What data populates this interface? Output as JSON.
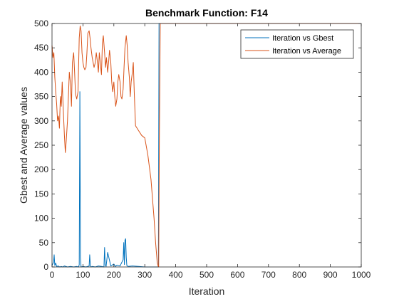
{
  "chart_data": {
    "type": "line",
    "title": "Benchmark Function: F14",
    "xlabel": "Iteration",
    "ylabel": "Gbest and Average values",
    "xlim": [
      0,
      1000
    ],
    "ylim": [
      0,
      500
    ],
    "xticks": [
      "0",
      "100",
      "200",
      "300",
      "400",
      "500",
      "600",
      "700",
      "800",
      "900",
      "1000"
    ],
    "yticks": [
      "0",
      "50",
      "100",
      "150",
      "200",
      "250",
      "300",
      "350",
      "400",
      "450",
      "500"
    ],
    "grid": false,
    "legend_position": "top-right",
    "series": [
      {
        "name": "Iteration vs Gbest",
        "color": "#0072BD",
        "x": [
          0,
          5,
          7,
          9,
          12,
          15,
          20,
          25,
          30,
          35,
          40,
          50,
          60,
          70,
          80,
          86,
          88,
          90,
          92,
          94,
          100,
          110,
          120,
          122,
          124,
          126,
          130,
          140,
          150,
          160,
          168,
          170,
          172,
          175,
          180,
          190,
          200,
          205,
          210,
          220,
          230,
          232,
          234,
          236,
          238,
          240,
          242,
          246,
          260,
          280,
          300,
          320,
          340,
          342,
          344,
          346,
          348,
          350,
          400,
          500,
          600,
          700,
          800,
          900,
          1000
        ],
        "y": [
          3,
          10,
          25,
          3,
          8,
          1,
          2,
          0,
          1,
          0,
          2,
          0,
          1,
          0,
          1,
          0,
          5,
          360,
          20,
          0,
          1,
          0,
          2,
          25,
          3,
          0,
          1,
          0,
          2,
          1,
          0,
          40,
          5,
          1,
          30,
          2,
          6,
          1,
          4,
          2,
          15,
          50,
          5,
          55,
          58,
          20,
          3,
          1,
          2,
          1,
          0,
          0,
          0,
          0,
          0,
          500,
          500,
          500,
          500,
          500,
          500,
          500,
          500,
          500,
          500
        ]
      },
      {
        "name": "Iteration vs Average",
        "color": "#D95319",
        "x": [
          0,
          3,
          6,
          9,
          12,
          15,
          18,
          21,
          24,
          27,
          30,
          33,
          36,
          40,
          43,
          46,
          50,
          53,
          56,
          60,
          63,
          66,
          70,
          73,
          76,
          80,
          84,
          88,
          91,
          94,
          97,
          100,
          103,
          106,
          110,
          113,
          116,
          120,
          123,
          126,
          130,
          133,
          136,
          140,
          143,
          146,
          150,
          153,
          156,
          160,
          163,
          166,
          170,
          173,
          176,
          180,
          183,
          186,
          190,
          193,
          196,
          200,
          203,
          206,
          210,
          213,
          216,
          220,
          223,
          226,
          230,
          233,
          236,
          240,
          243,
          246,
          250,
          253,
          256,
          260,
          263,
          266,
          270,
          280,
          290,
          300,
          310,
          320,
          330,
          335,
          340,
          343,
          345,
          347,
          350,
          400,
          500,
          600,
          700,
          800,
          900,
          1000
        ],
        "y": [
          455,
          430,
          440,
          390,
          360,
          335,
          300,
          310,
          285,
          350,
          330,
          380,
          330,
          270,
          235,
          260,
          300,
          350,
          400,
          375,
          330,
          420,
          440,
          400,
          355,
          345,
          360,
          470,
          495,
          485,
          440,
          420,
          410,
          405,
          410,
          440,
          480,
          485,
          470,
          450,
          430,
          420,
          410,
          420,
          440,
          425,
          400,
          440,
          420,
          395,
          460,
          475,
          440,
          410,
          430,
          400,
          420,
          445,
          420,
          380,
          360,
          380,
          350,
          330,
          345,
          380,
          395,
          380,
          350,
          345,
          365,
          410,
          450,
          475,
          455,
          420,
          390,
          350,
          380,
          400,
          420,
          360,
          290,
          280,
          270,
          265,
          230,
          180,
          100,
          50,
          10,
          2,
          0,
          250,
          500,
          500,
          500,
          500,
          500,
          500,
          500,
          500
        ]
      }
    ]
  }
}
